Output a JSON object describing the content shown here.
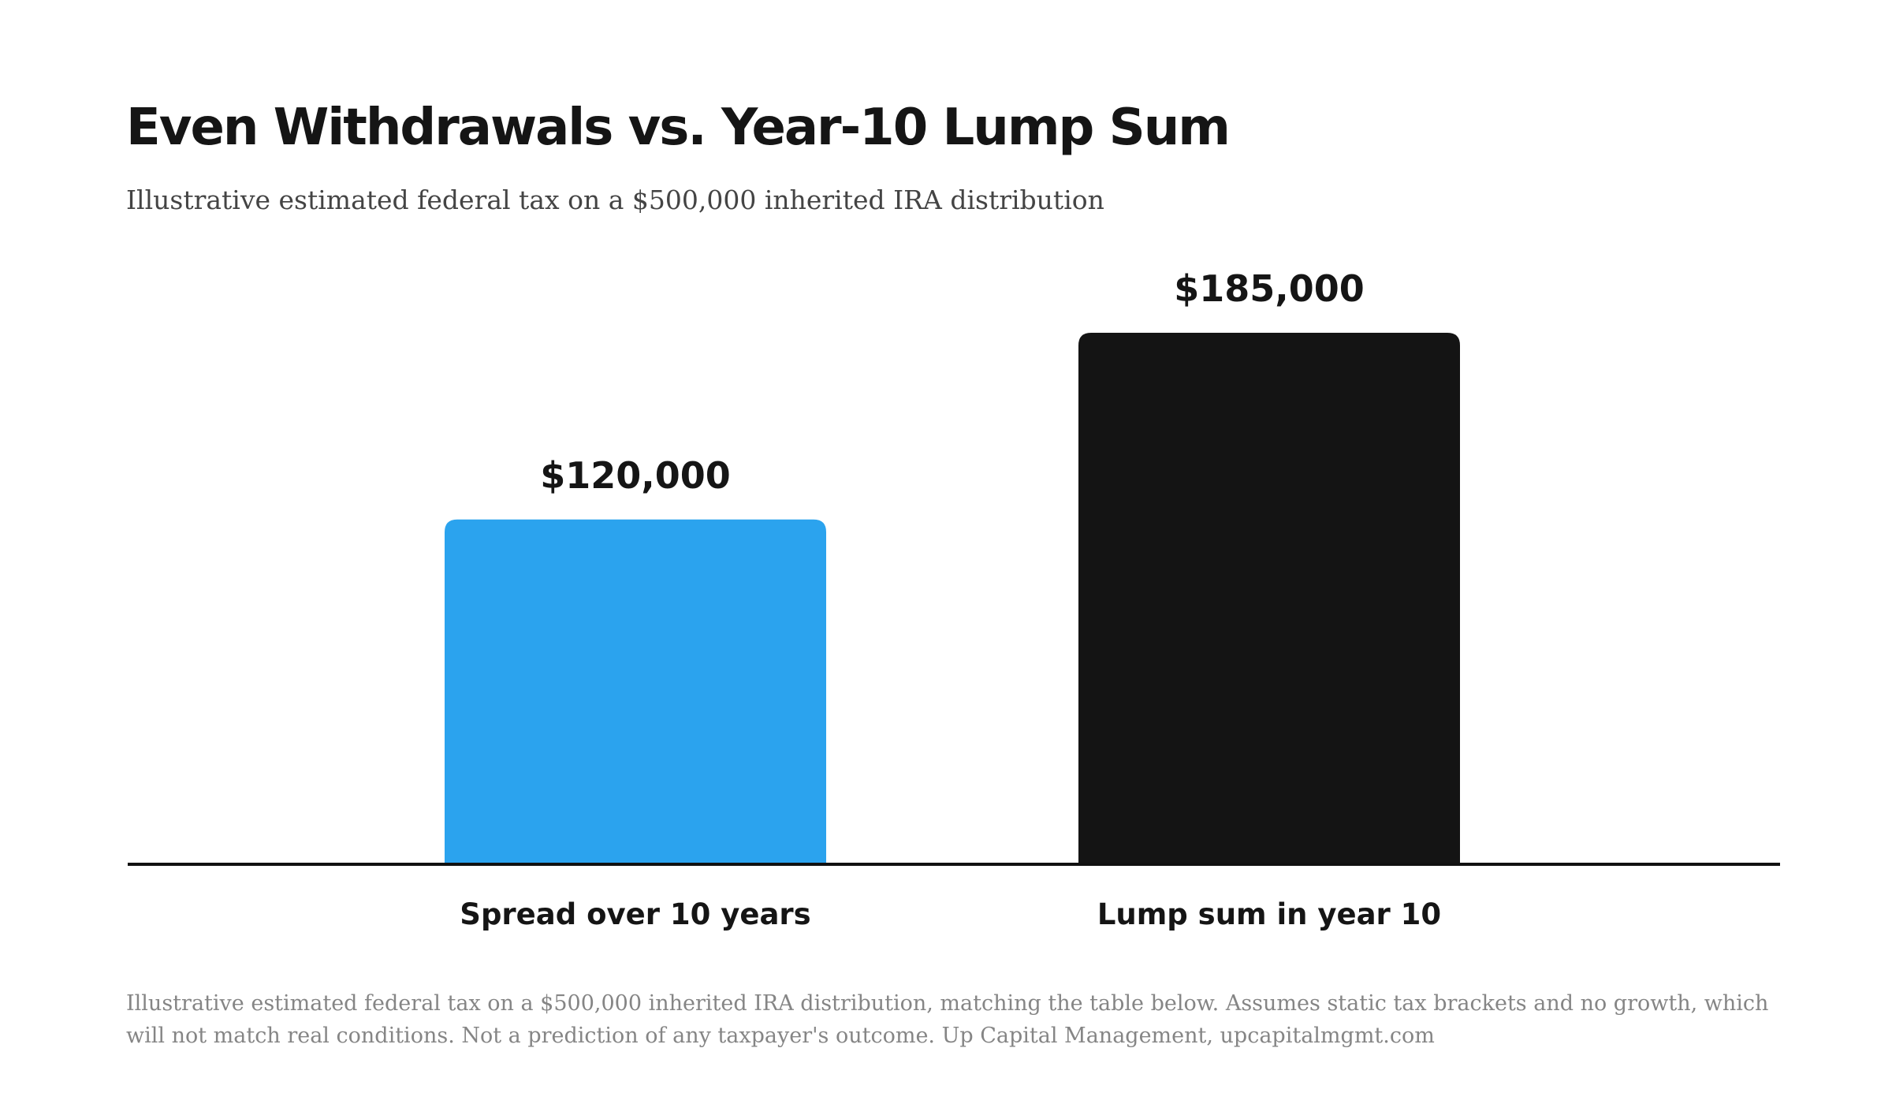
{
  "title": "Even Withdrawals vs. Year-10 Lump Sum",
  "subtitle": "Illustrative estimated federal tax on a $500,000 inherited IRA distribution",
  "footnote": "Illustrative estimated federal tax on a $500,000 inherited IRA distribution, matching the table below. Assumes static tax brackets and no growth, which will not match real conditions. Not a prediction of any taxpayer's outcome. Up Capital Management, upcapitalmgmt.com",
  "chart_data": {
    "type": "bar",
    "title": "Even Withdrawals vs. Year-10 Lump Sum",
    "subtitle": "Illustrative estimated federal tax on a $500,000 inherited IRA distribution",
    "categories": [
      "Spread over 10 years",
      "Lump sum in year 10"
    ],
    "values": [
      120000,
      185000
    ],
    "data_labels": [
      "$120,000",
      "$185,000"
    ],
    "colors": [
      "#2ba3ee",
      "#141414"
    ],
    "axis_color": "#111111",
    "label_color": "#151515",
    "ylim": [
      0,
      185000
    ],
    "xlabel": "",
    "ylabel": "",
    "grid": false,
    "legend": "none"
  }
}
